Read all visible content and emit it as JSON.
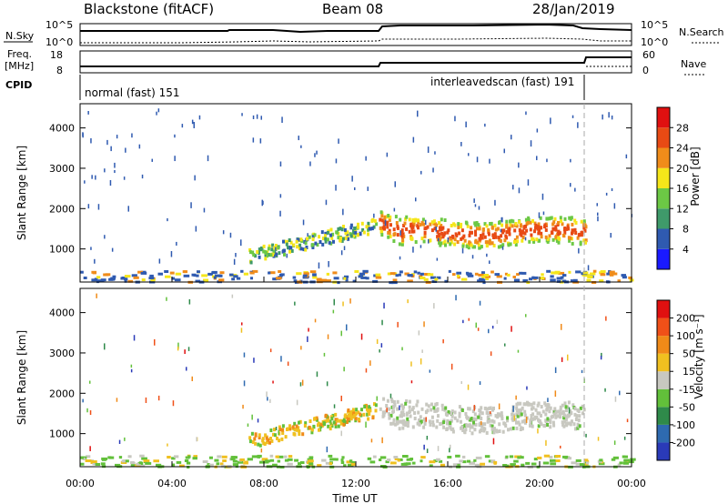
{
  "header": {
    "station": "Blackstone (fitACF)",
    "beam": "Beam 08",
    "date": "28/Jan/2019"
  },
  "nsky_panel": {
    "left_label": "N.Sky",
    "right_label": "N.Search",
    "left_ticks": [
      "10^5",
      "10^0"
    ],
    "right_ticks": [
      "10^5",
      "10^0"
    ]
  },
  "freq_panel": {
    "left_label_1": "Freq.",
    "left_label_2": "[MHz]",
    "right_label": "Nave",
    "left_ticks": [
      "18",
      "8"
    ],
    "right_ticks": [
      "60",
      "0"
    ]
  },
  "cpid_panel": {
    "label": "CPID",
    "mode_1": "normal (fast) 151",
    "mode_2": "interleavedscan (fast) 191"
  },
  "chart_data": [
    {
      "type": "heatmap",
      "name": "Power",
      "ylabel": "Slant Range [km]",
      "xlabel": "Time UT",
      "x_range_hours": [
        0,
        24
      ],
      "ylim": [
        180,
        4600
      ],
      "y_ticks": [
        "1000",
        "2000",
        "3000",
        "4000"
      ],
      "colorbar": {
        "label": "Power [dB]",
        "ticks": [
          "4",
          "8",
          "12",
          "16",
          "20",
          "24",
          "28"
        ],
        "colors": [
          "#1a1aff",
          "#2f5ab0",
          "#3f9a6a",
          "#6cc845",
          "#f5e61a",
          "#f08c1a",
          "#e84a14",
          "#e01010"
        ]
      }
    },
    {
      "type": "heatmap",
      "name": "Velocity",
      "ylabel": "Slant Range [km]",
      "xlabel": "Time UT",
      "x_range_hours": [
        0,
        24
      ],
      "ylim": [
        180,
        4600
      ],
      "y_ticks": [
        "1000",
        "2000",
        "3000",
        "4000"
      ],
      "x_ticks": [
        "00:00",
        "04:00",
        "08:00",
        "12:00",
        "16:00",
        "20:00",
        "00:00"
      ],
      "colorbar": {
        "label": "Velocity [m s⁻¹]",
        "ticks": [
          "200",
          "100",
          "50",
          "15",
          "-15",
          "-50",
          "-100",
          "-200"
        ],
        "colors": [
          "#2a3ab8",
          "#2e6ab0",
          "#2f8a4a",
          "#62c03a",
          "#c8c8c0",
          "#f0c020",
          "#f08a18",
          "#f05018",
          "#e01010"
        ]
      }
    }
  ]
}
